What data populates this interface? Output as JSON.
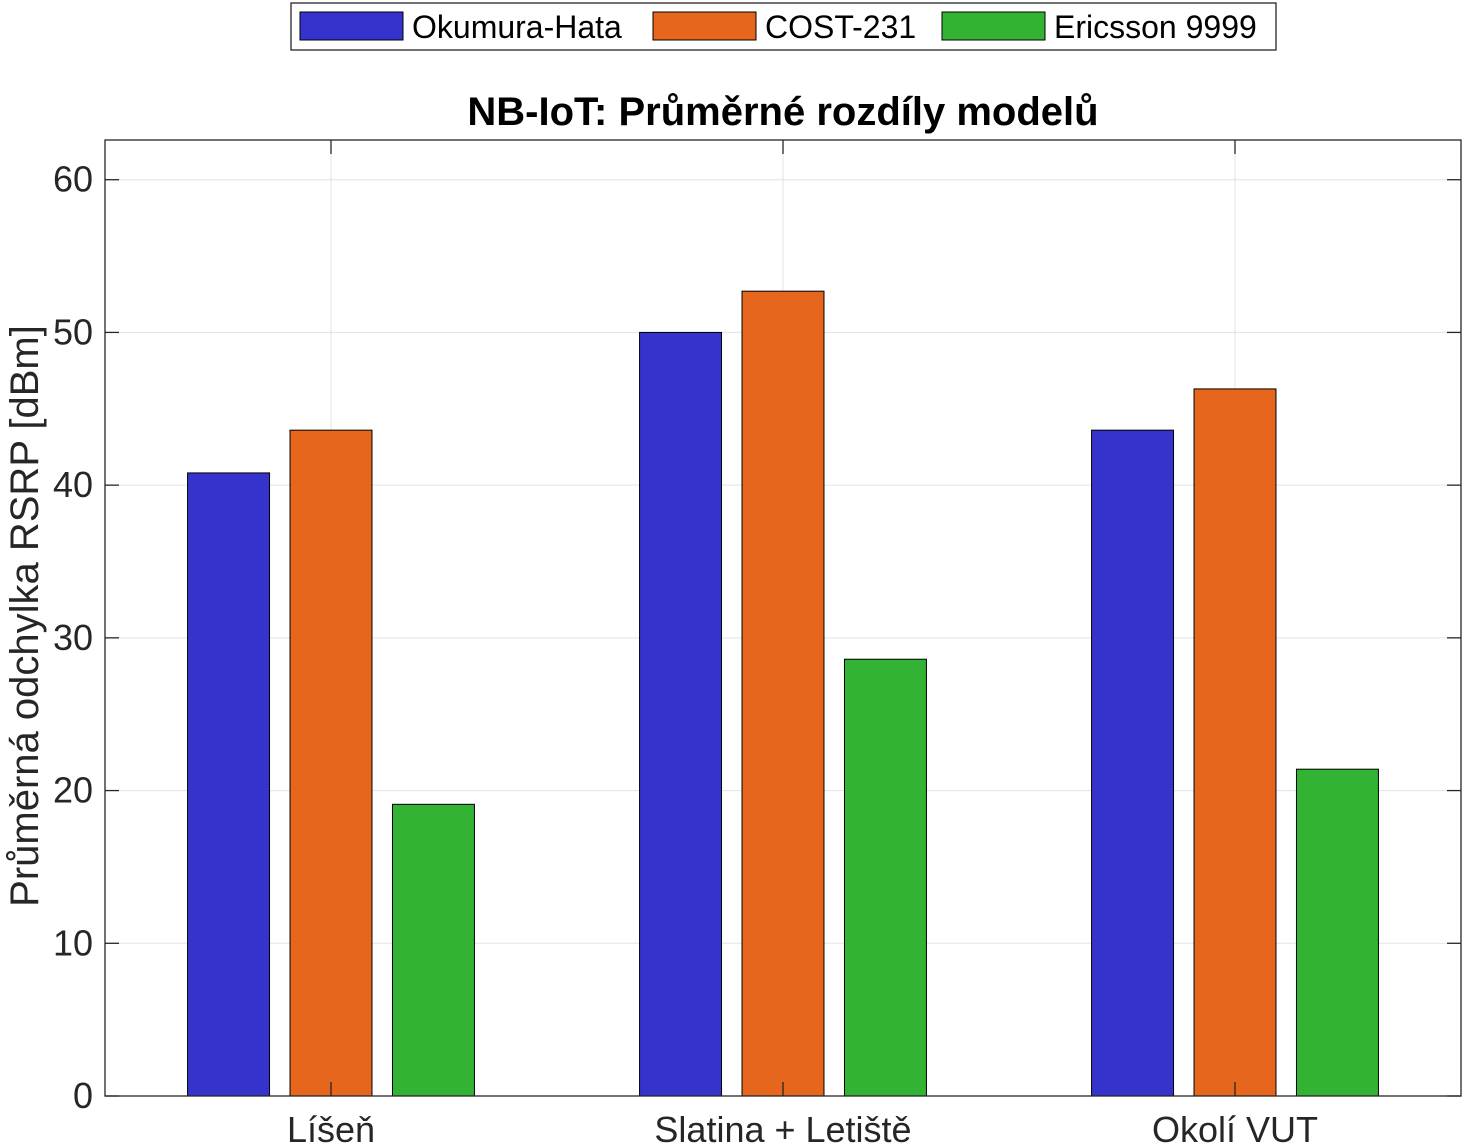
{
  "chart_data": {
    "type": "bar",
    "title": "NB-IoT: Průměrné rozdíly modelů",
    "xlabel": "",
    "ylabel": "Průměrná odchylka RSRP [dBm]",
    "categories": [
      "Líšeň",
      "Slatina + Letiště",
      "Okolí VUT"
    ],
    "series": [
      {
        "name": "Okumura-Hata",
        "color": "#3633CC",
        "values": [
          40.8,
          50.0,
          43.6
        ]
      },
      {
        "name": "COST-231",
        "color": "#E6661D",
        "values": [
          43.6,
          52.7,
          46.3
        ]
      },
      {
        "name": "Ericsson 9999",
        "color": "#33B333",
        "values": [
          19.1,
          28.6,
          21.4
        ]
      }
    ],
    "ylim": [
      0,
      62.6
    ],
    "yticks": [
      0,
      10,
      20,
      30,
      40,
      50,
      60
    ],
    "grid": true,
    "legend_position": "top-center-outside"
  }
}
